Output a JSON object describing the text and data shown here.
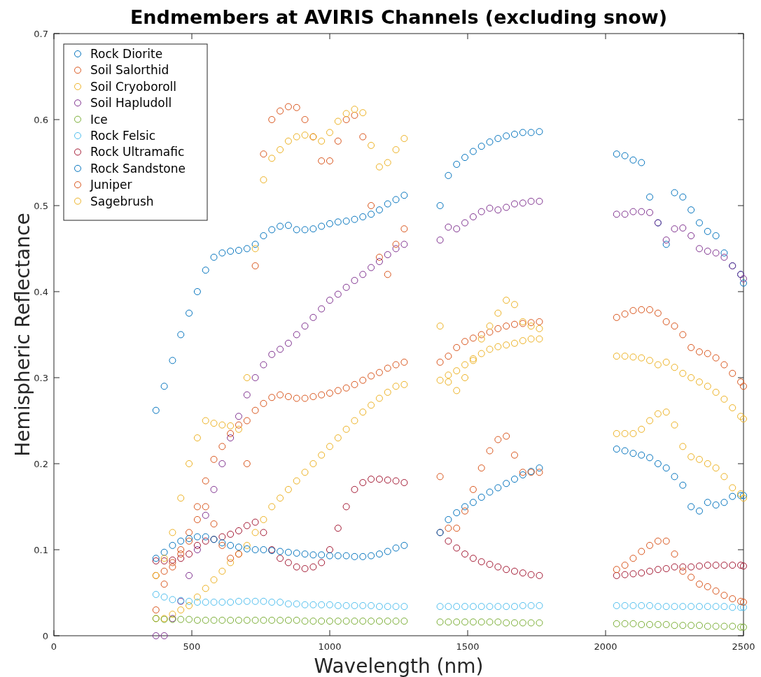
{
  "chart_data": {
    "type": "scatter",
    "title": "Endmembers at AVIRIS Channels (excluding snow)",
    "xlabel": "Wavelength (nm)",
    "ylabel": "Hemispheric Reflectance",
    "x": [
      370,
      400,
      430,
      460,
      490,
      520,
      550,
      580,
      610,
      640,
      670,
      700,
      730,
      760,
      790,
      820,
      850,
      880,
      910,
      940,
      970,
      1000,
      1030,
      1060,
      1090,
      1120,
      1150,
      1180,
      1210,
      1240,
      1270,
      1400,
      1430,
      1460,
      1490,
      1520,
      1550,
      1580,
      1610,
      1640,
      1670,
      1700,
      1730,
      1760,
      2040,
      2070,
      2100,
      2130,
      2160,
      2190,
      2220,
      2250,
      2280,
      2310,
      2340,
      2370,
      2400,
      2430,
      2460,
      2490,
      2500
    ],
    "xlim": [
      0,
      2500
    ],
    "xticks": [
      0,
      500,
      1000,
      1500,
      2000,
      2500
    ],
    "ylim": [
      0,
      0.7
    ],
    "yticks": [
      0,
      0.1,
      0.2,
      0.3,
      0.4,
      0.5,
      0.6,
      0.7
    ],
    "marker": "circle",
    "legend": "top left",
    "grid": false,
    "series": [
      {
        "name": "Rock Diorite",
        "color": "#0072bd",
        "values": [
          0.262,
          0.29,
          0.32,
          0.35,
          0.375,
          0.4,
          0.425,
          0.44,
          0.445,
          0.447,
          0.448,
          0.45,
          0.455,
          0.465,
          0.472,
          0.476,
          0.477,
          0.472,
          0.472,
          0.473,
          0.476,
          0.479,
          0.481,
          0.482,
          0.484,
          0.487,
          0.49,
          0.495,
          0.502,
          0.507,
          0.512,
          0.5,
          0.535,
          0.548,
          0.556,
          0.563,
          0.569,
          0.574,
          0.578,
          0.581,
          0.583,
          0.585,
          0.585,
          0.586,
          0.56,
          0.558,
          0.553,
          0.55,
          0.51,
          0.48,
          0.455,
          0.515,
          0.51,
          0.495,
          0.48,
          0.47,
          0.465,
          0.445,
          0.43,
          0.42,
          0.41
        ]
      },
      {
        "name": "Soil Salorthid",
        "color": "#d95319",
        "values": [
          0.07,
          0.075,
          0.085,
          0.1,
          0.12,
          0.15,
          0.18,
          0.205,
          0.22,
          0.235,
          0.245,
          0.25,
          0.262,
          0.27,
          0.277,
          0.28,
          0.278,
          0.276,
          0.276,
          0.278,
          0.28,
          0.282,
          0.285,
          0.288,
          0.292,
          0.297,
          0.302,
          0.306,
          0.311,
          0.315,
          0.318,
          0.318,
          0.325,
          0.335,
          0.342,
          0.346,
          0.35,
          0.353,
          0.357,
          0.36,
          0.362,
          0.363,
          0.364,
          0.365,
          0.37,
          0.374,
          0.378,
          0.379,
          0.379,
          0.375,
          0.365,
          0.36,
          0.35,
          0.335,
          0.33,
          0.328,
          0.323,
          0.315,
          0.305,
          0.295,
          0.29
        ]
      },
      {
        "name": "Soil Cryoboroll",
        "color": "#edb120",
        "values": [
          0.02,
          0.02,
          0.025,
          0.03,
          0.035,
          0.045,
          0.055,
          0.065,
          0.075,
          0.085,
          0.095,
          0.105,
          0.12,
          0.135,
          0.15,
          0.16,
          0.17,
          0.18,
          0.19,
          0.2,
          0.21,
          0.22,
          0.23,
          0.24,
          0.25,
          0.26,
          0.268,
          0.276,
          0.283,
          0.29,
          0.292,
          0.297,
          0.303,
          0.308,
          0.315,
          0.322,
          0.328,
          0.333,
          0.336,
          0.338,
          0.34,
          0.343,
          0.345,
          0.345,
          0.325,
          0.325,
          0.324,
          0.323,
          0.32,
          0.315,
          0.318,
          0.312,
          0.305,
          0.3,
          0.295,
          0.29,
          0.283,
          0.275,
          0.265,
          0.255,
          0.252
        ]
      },
      {
        "name": "Soil Hapludoll",
        "color": "#7e2f8e",
        "values": [
          0,
          0,
          0.02,
          0.04,
          0.07,
          0.1,
          0.14,
          0.17,
          0.2,
          0.23,
          0.255,
          0.28,
          0.3,
          0.315,
          0.327,
          0.333,
          0.34,
          0.35,
          0.36,
          0.37,
          0.38,
          0.39,
          0.397,
          0.405,
          0.413,
          0.42,
          0.428,
          0.435,
          0.443,
          0.45,
          0.455,
          0.46,
          0.475,
          0.473,
          0.48,
          0.487,
          0.493,
          0.497,
          0.495,
          0.498,
          0.502,
          0.503,
          0.505,
          0.505,
          0.49,
          0.49,
          0.493,
          0.493,
          0.492,
          0.48,
          0.46,
          0.473,
          0.474,
          0.465,
          0.45,
          0.447,
          0.445,
          0.44,
          0.43,
          0.42,
          0.415
        ]
      },
      {
        "name": "Ice",
        "color": "#77ac30",
        "values": [
          0.02,
          0.019,
          0.019,
          0.019,
          0.019,
          0.018,
          0.018,
          0.018,
          0.018,
          0.018,
          0.018,
          0.018,
          0.018,
          0.018,
          0.018,
          0.018,
          0.018,
          0.018,
          0.017,
          0.017,
          0.017,
          0.017,
          0.017,
          0.017,
          0.017,
          0.017,
          0.017,
          0.017,
          0.017,
          0.017,
          0.017,
          0.016,
          0.016,
          0.016,
          0.016,
          0.016,
          0.016,
          0.016,
          0.016,
          0.015,
          0.015,
          0.015,
          0.015,
          0.015,
          0.014,
          0.014,
          0.014,
          0.013,
          0.013,
          0.013,
          0.013,
          0.012,
          0.012,
          0.012,
          0.012,
          0.011,
          0.011,
          0.011,
          0.011,
          0.01,
          0.01
        ]
      },
      {
        "name": "Rock Felsic",
        "color": "#4dbeee",
        "values": [
          0.048,
          0.045,
          0.042,
          0.041,
          0.04,
          0.039,
          0.039,
          0.039,
          0.039,
          0.039,
          0.04,
          0.04,
          0.04,
          0.04,
          0.039,
          0.039,
          0.037,
          0.037,
          0.036,
          0.036,
          0.036,
          0.036,
          0.035,
          0.035,
          0.035,
          0.035,
          0.035,
          0.034,
          0.034,
          0.034,
          0.034,
          0.034,
          0.034,
          0.034,
          0.034,
          0.034,
          0.034,
          0.034,
          0.034,
          0.034,
          0.034,
          0.035,
          0.035,
          0.035,
          0.035,
          0.035,
          0.035,
          0.035,
          0.035,
          0.034,
          0.034,
          0.034,
          0.034,
          0.034,
          0.034,
          0.034,
          0.034,
          0.034,
          0.033,
          0.033,
          0.033
        ]
      },
      {
        "name": "Rock Ultramafic",
        "color": "#a2142f",
        "values": [
          0.087,
          0.087,
          0.088,
          0.09,
          0.095,
          0.105,
          0.11,
          0.112,
          0.115,
          0.118,
          0.122,
          0.128,
          0.132,
          0.12,
          0.1,
          0.09,
          0.085,
          0.08,
          0.078,
          0.08,
          0.085,
          0.1,
          0.125,
          0.15,
          0.17,
          0.178,
          0.182,
          0.182,
          0.181,
          0.18,
          0.178,
          0.12,
          0.11,
          0.102,
          0.095,
          0.09,
          0.086,
          0.083,
          0.08,
          0.077,
          0.075,
          0.073,
          0.071,
          0.07,
          0.07,
          0.071,
          0.072,
          0.073,
          0.075,
          0.077,
          0.078,
          0.08,
          0.08,
          0.08,
          0.081,
          0.082,
          0.082,
          0.082,
          0.082,
          0.082,
          0.081
        ]
      },
      {
        "name": "Rock Sandstone",
        "color": "#0072bd",
        "values": [
          0.09,
          0.097,
          0.105,
          0.11,
          0.113,
          0.115,
          0.115,
          0.112,
          0.108,
          0.105,
          0.103,
          0.101,
          0.1,
          0.1,
          0.099,
          0.098,
          0.097,
          0.096,
          0.095,
          0.094,
          0.094,
          0.093,
          0.093,
          0.093,
          0.092,
          0.092,
          0.093,
          0.095,
          0.098,
          0.102,
          0.105,
          0.12,
          0.135,
          0.143,
          0.15,
          0.155,
          0.161,
          0.167,
          0.172,
          0.177,
          0.182,
          0.187,
          0.191,
          0.195,
          0.217,
          0.215,
          0.212,
          0.21,
          0.207,
          0.2,
          0.195,
          0.185,
          0.175,
          0.15,
          0.145,
          0.155,
          0.152,
          0.155,
          0.162,
          0.163,
          0.163
        ]
      },
      {
        "name": "Juniper",
        "color": "#d95319",
        "values": [
          0.03,
          0.06,
          0.08,
          0.095,
          0.11,
          0.135,
          0.15,
          0.13,
          0.105,
          0.09,
          0.095,
          0.2,
          0.43,
          0.56,
          0.6,
          0.61,
          0.615,
          0.614,
          0.6,
          0.58,
          0.552,
          0.552,
          0.575,
          0.6,
          0.605,
          0.58,
          0.5,
          0.44,
          0.42,
          0.455,
          0.473,
          0.185,
          0.125,
          0.125,
          0.145,
          0.17,
          0.195,
          0.215,
          0.228,
          0.232,
          0.21,
          0.19,
          0.19,
          0.19,
          0.077,
          0.082,
          0.09,
          0.098,
          0.105,
          0.11,
          0.11,
          0.095,
          0.075,
          0.068,
          0.06,
          0.057,
          0.052,
          0.047,
          0.043,
          0.04,
          0.039
        ]
      },
      {
        "name": "Sagebrush",
        "color": "#edb120",
        "values": [
          0.07,
          0.09,
          0.12,
          0.16,
          0.2,
          0.23,
          0.25,
          0.247,
          0.245,
          0.244,
          0.24,
          0.3,
          0.45,
          0.53,
          0.555,
          0.565,
          0.575,
          0.58,
          0.582,
          0.58,
          0.575,
          0.585,
          0.598,
          0.607,
          0.612,
          0.608,
          0.57,
          0.545,
          0.55,
          0.565,
          0.578,
          0.36,
          0.295,
          0.285,
          0.3,
          0.32,
          0.345,
          0.36,
          0.375,
          0.39,
          0.385,
          0.365,
          0.36,
          0.357,
          0.235,
          0.235,
          0.235,
          0.24,
          0.25,
          0.258,
          0.26,
          0.245,
          0.22,
          0.208,
          0.205,
          0.2,
          0.195,
          0.185,
          0.172,
          0.165,
          0.16
        ]
      }
    ]
  }
}
